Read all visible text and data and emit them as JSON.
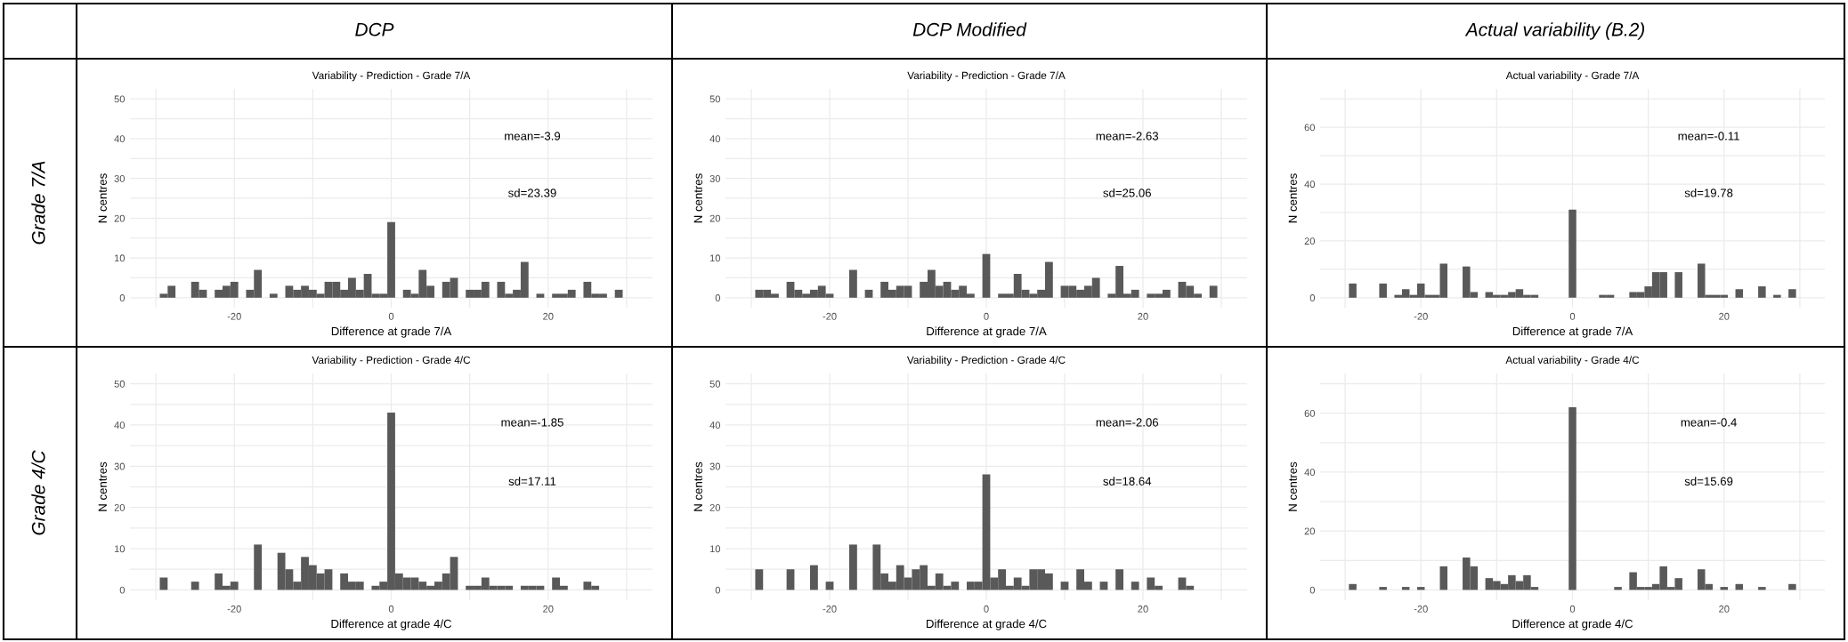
{
  "chart_data": [
    {
      "type": "histogram",
      "title": "DCP",
      "subtitle": "Variability - Prediction - Grade 7/A",
      "xlabel": "Difference at grade 7/A",
      "ylabel": "N centres",
      "color": "#595959",
      "grid": true,
      "bins": [
        -29.5,
        -28.5,
        -27.5,
        -26.5,
        -25.5,
        -24.5,
        -23.5,
        -22.5,
        -21.5,
        -20.5,
        -19.5,
        -18.5,
        -17.5,
        -16.5,
        -15.5,
        -14.5,
        -13.5,
        -12.5,
        -11.5,
        -10.5,
        -9.5,
        -8.5,
        -7.5,
        -6.5,
        -5.5,
        -4.5,
        -3.5,
        -2.5,
        -1.5,
        -0.5,
        0.5,
        1.5,
        2.5,
        3.5,
        4.5,
        5.5,
        6.5,
        7.5,
        8.5,
        9.5,
        10.5,
        11.5,
        12.5,
        13.5,
        14.5,
        15.5,
        16.5,
        17.5,
        18.5,
        19.5,
        20.5,
        21.5,
        22.5,
        23.5,
        24.5,
        25.5,
        26.5,
        27.5,
        28.5,
        29.5
      ],
      "values": [
        1,
        3,
        0,
        0,
        4,
        2,
        0,
        2,
        3,
        4,
        0,
        2,
        7,
        0,
        1,
        0,
        3,
        2,
        3,
        2,
        1,
        4,
        4,
        2,
        5,
        2,
        6,
        1,
        1,
        19,
        0,
        2,
        1,
        7,
        3,
        0,
        4,
        5,
        0,
        2,
        2,
        4,
        0,
        4,
        1,
        2,
        9,
        0,
        1,
        0,
        1,
        1,
        2,
        0,
        4,
        1,
        1,
        0,
        2
      ],
      "xlim": [
        -33.3,
        33.3
      ],
      "xticks": [
        {
          "value": -30,
          "label": null
        },
        -20,
        {
          "value": -10,
          "label": null
        },
        0,
        {
          "value": 10,
          "label": null
        },
        20,
        {
          "value": 30,
          "label": null
        }
      ],
      "ylim": [
        -2.5,
        52.5
      ],
      "yticks": [
        0,
        {
          "value": 5,
          "label": null
        },
        10,
        {
          "value": 15,
          "label": null
        },
        20,
        {
          "value": 25,
          "label": null
        },
        30,
        {
          "value": 35,
          "label": null
        },
        40,
        {
          "value": 45,
          "label": null
        },
        50
      ],
      "annotations": [
        "mean=-3.9",
        "sd=23.39",
        "Grade 7/A"
      ]
    },
    {
      "type": "histogram",
      "title": "DCP Modified",
      "subtitle": "Variability - Prediction - Grade 7/A",
      "xlabel": "Difference at grade 7/A",
      "ylabel": "N centres",
      "color": "#595959",
      "grid": true,
      "bins": [
        -29.5,
        -28.5,
        -27.5,
        -26.5,
        -25.5,
        -24.5,
        -23.5,
        -22.5,
        -21.5,
        -20.5,
        -19.5,
        -18.5,
        -17.5,
        -16.5,
        -15.5,
        -14.5,
        -13.5,
        -12.5,
        -11.5,
        -10.5,
        -9.5,
        -8.5,
        -7.5,
        -6.5,
        -5.5,
        -4.5,
        -3.5,
        -2.5,
        -1.5,
        -0.5,
        0.5,
        1.5,
        2.5,
        3.5,
        4.5,
        5.5,
        6.5,
        7.5,
        8.5,
        9.5,
        10.5,
        11.5,
        12.5,
        13.5,
        14.5,
        15.5,
        16.5,
        17.5,
        18.5,
        19.5,
        20.5,
        21.5,
        22.5,
        23.5,
        24.5,
        25.5,
        26.5,
        27.5,
        28.5,
        29.5
      ],
      "values": [
        2,
        2,
        1,
        0,
        4,
        2,
        1,
        2,
        3,
        1,
        0,
        0,
        7,
        0,
        2,
        0,
        4,
        2,
        3,
        3,
        0,
        4,
        7,
        3,
        4,
        2,
        3,
        1,
        0,
        11,
        0,
        1,
        1,
        6,
        2,
        1,
        2,
        9,
        0,
        3,
        3,
        2,
        3,
        5,
        0,
        1,
        8,
        1,
        2,
        0,
        1,
        1,
        2,
        0,
        4,
        3,
        1,
        0,
        3
      ],
      "xlim": [
        -33.3,
        33.3
      ],
      "xticks": [
        {
          "value": -30,
          "label": null
        },
        -20,
        {
          "value": -10,
          "label": null
        },
        0,
        {
          "value": 10,
          "label": null
        },
        20,
        {
          "value": 30,
          "label": null
        }
      ],
      "ylim": [
        -2.5,
        52.5
      ],
      "yticks": [
        0,
        {
          "value": 5,
          "label": null
        },
        10,
        {
          "value": 15,
          "label": null
        },
        20,
        {
          "value": 25,
          "label": null
        },
        30,
        {
          "value": 35,
          "label": null
        },
        40,
        {
          "value": 45,
          "label": null
        },
        50
      ],
      "annotations": [
        "mean=-2.63",
        "sd=25.06"
      ]
    },
    {
      "type": "histogram",
      "title": "Actual variability (B.2)",
      "subtitle": "Actual variability - Grade 7/A",
      "xlabel": "Difference at grade 7/A",
      "ylabel": "N centres",
      "color": "#595959",
      "grid": true,
      "bins": [
        -29.5,
        -28.5,
        -27.5,
        -26.5,
        -25.5,
        -24.5,
        -23.5,
        -22.5,
        -21.5,
        -20.5,
        -19.5,
        -18.5,
        -17.5,
        -16.5,
        -15.5,
        -14.5,
        -13.5,
        -12.5,
        -11.5,
        -10.5,
        -9.5,
        -8.5,
        -7.5,
        -6.5,
        -5.5,
        -4.5,
        -3.5,
        -2.5,
        -1.5,
        -0.5,
        0.5,
        1.5,
        2.5,
        3.5,
        4.5,
        5.5,
        6.5,
        7.5,
        8.5,
        9.5,
        10.5,
        11.5,
        12.5,
        13.5,
        14.5,
        15.5,
        16.5,
        17.5,
        18.5,
        19.5,
        20.5,
        21.5,
        22.5,
        23.5,
        24.5,
        25.5,
        26.5,
        27.5,
        28.5,
        29.5
      ],
      "values": [
        5,
        0,
        0,
        0,
        5,
        0,
        1,
        3,
        1,
        5,
        1,
        1,
        12,
        0,
        0,
        11,
        2,
        0,
        2,
        1,
        1,
        2,
        3,
        1,
        1,
        0,
        0,
        0,
        0,
        31,
        0,
        0,
        0,
        1,
        1,
        0,
        0,
        2,
        2,
        4,
        9,
        9,
        0,
        9,
        0,
        0,
        12,
        1,
        1,
        1,
        0,
        3,
        0,
        0,
        4,
        0,
        1,
        0,
        3
      ],
      "xlim": [
        -33.3,
        33.3
      ],
      "xticks": [
        {
          "value": -30,
          "label": null
        },
        -20,
        {
          "value": -10,
          "label": null
        },
        0,
        {
          "value": 10,
          "label": null
        },
        20,
        {
          "value": 30,
          "label": null
        }
      ],
      "ylim": [
        -3.5,
        73.5
      ],
      "yticks": [
        0,
        {
          "value": 10,
          "label": null
        },
        20,
        {
          "value": 30,
          "label": null
        },
        40,
        {
          "value": 50,
          "label": null
        },
        60,
        {
          "value": 70,
          "label": null
        }
      ],
      "annotations": [
        "mean=-0.11",
        "sd=19.78"
      ]
    },
    {
      "type": "histogram",
      "subtitle": "Variability - Prediction - Grade 4/C",
      "xlabel": "Difference at grade 4/C",
      "ylabel": "N centres",
      "color": "#595959",
      "grid": true,
      "bins": [
        -29.5,
        -28.5,
        -27.5,
        -26.5,
        -25.5,
        -24.5,
        -23.5,
        -22.5,
        -21.5,
        -20.5,
        -19.5,
        -18.5,
        -17.5,
        -16.5,
        -15.5,
        -14.5,
        -13.5,
        -12.5,
        -11.5,
        -10.5,
        -9.5,
        -8.5,
        -7.5,
        -6.5,
        -5.5,
        -4.5,
        -3.5,
        -2.5,
        -1.5,
        -0.5,
        0.5,
        1.5,
        2.5,
        3.5,
        4.5,
        5.5,
        6.5,
        7.5,
        8.5,
        9.5,
        10.5,
        11.5,
        12.5,
        13.5,
        14.5,
        15.5,
        16.5,
        17.5,
        18.5,
        19.5,
        20.5,
        21.5,
        22.5,
        23.5,
        24.5,
        25.5,
        26.5,
        27.5,
        28.5,
        29.5
      ],
      "values": [
        3,
        0,
        0,
        0,
        2,
        0,
        0,
        4,
        1,
        2,
        0,
        0,
        11,
        0,
        0,
        9,
        5,
        2,
        8,
        6,
        4,
        5,
        0,
        4,
        2,
        2,
        0,
        1,
        2,
        43,
        4,
        3,
        3,
        2,
        1,
        2,
        4,
        8,
        0,
        1,
        1,
        3,
        1,
        1,
        1,
        0,
        1,
        1,
        1,
        0,
        3,
        1,
        0,
        0,
        2,
        1,
        0,
        0,
        0
      ],
      "xlim": [
        -33.3,
        33.3
      ],
      "xticks": [
        {
          "value": -30,
          "label": null
        },
        -20,
        {
          "value": -10,
          "label": null
        },
        0,
        {
          "value": 10,
          "label": null
        },
        20,
        {
          "value": 30,
          "label": null
        }
      ],
      "ylim": [
        -2.5,
        52.5
      ],
      "yticks": [
        0,
        {
          "value": 5,
          "label": null
        },
        10,
        {
          "value": 15,
          "label": null
        },
        20,
        {
          "value": 25,
          "label": null
        },
        30,
        {
          "value": 35,
          "label": null
        },
        40,
        {
          "value": 45,
          "label": null
        },
        50
      ],
      "annotations": [
        "mean=-1.85",
        "sd=17.11",
        "Grade 4/C"
      ]
    },
    {
      "type": "histogram",
      "subtitle": "Variability - Prediction - Grade 4/C",
      "xlabel": "Difference at grade 4/C",
      "ylabel": "N centres",
      "color": "#595959",
      "grid": true,
      "bins": [
        -29.5,
        -28.5,
        -27.5,
        -26.5,
        -25.5,
        -24.5,
        -23.5,
        -22.5,
        -21.5,
        -20.5,
        -19.5,
        -18.5,
        -17.5,
        -16.5,
        -15.5,
        -14.5,
        -13.5,
        -12.5,
        -11.5,
        -10.5,
        -9.5,
        -8.5,
        -7.5,
        -6.5,
        -5.5,
        -4.5,
        -3.5,
        -2.5,
        -1.5,
        -0.5,
        0.5,
        1.5,
        2.5,
        3.5,
        4.5,
        5.5,
        6.5,
        7.5,
        8.5,
        9.5,
        10.5,
        11.5,
        12.5,
        13.5,
        14.5,
        15.5,
        16.5,
        17.5,
        18.5,
        19.5,
        20.5,
        21.5,
        22.5,
        23.5,
        24.5,
        25.5,
        26.5,
        27.5,
        28.5,
        29.5
      ],
      "values": [
        5,
        0,
        0,
        0,
        5,
        0,
        0,
        6,
        0,
        2,
        0,
        0,
        11,
        0,
        0,
        11,
        4,
        2,
        6,
        3,
        5,
        6,
        1,
        4,
        1,
        2,
        0,
        2,
        2,
        28,
        3,
        5,
        1,
        3,
        1,
        5,
        5,
        4,
        0,
        2,
        0,
        5,
        2,
        0,
        2,
        0,
        5,
        0,
        2,
        0,
        3,
        1,
        0,
        0,
        3,
        1,
        0,
        0,
        0
      ],
      "xlim": [
        -33.3,
        33.3
      ],
      "xticks": [
        {
          "value": -30,
          "label": null
        },
        -20,
        {
          "value": -10,
          "label": null
        },
        0,
        {
          "value": 10,
          "label": null
        },
        20,
        {
          "value": 30,
          "label": null
        }
      ],
      "ylim": [
        -2.5,
        52.5
      ],
      "yticks": [
        0,
        {
          "value": 5,
          "label": null
        },
        10,
        {
          "value": 15,
          "label": null
        },
        20,
        {
          "value": 25,
          "label": null
        },
        30,
        {
          "value": 35,
          "label": null
        },
        40,
        {
          "value": 45,
          "label": null
        },
        50
      ],
      "annotations": [
        "mean=-2.06",
        "sd=18.64"
      ]
    },
    {
      "type": "histogram",
      "subtitle": "Actual variability - Grade 4/C",
      "xlabel": "Difference at grade 4/C",
      "ylabel": "N centres",
      "color": "#595959",
      "grid": true,
      "bins": [
        -29.5,
        -28.5,
        -27.5,
        -26.5,
        -25.5,
        -24.5,
        -23.5,
        -22.5,
        -21.5,
        -20.5,
        -19.5,
        -18.5,
        -17.5,
        -16.5,
        -15.5,
        -14.5,
        -13.5,
        -12.5,
        -11.5,
        -10.5,
        -9.5,
        -8.5,
        -7.5,
        -6.5,
        -5.5,
        -4.5,
        -3.5,
        -2.5,
        -1.5,
        -0.5,
        0.5,
        1.5,
        2.5,
        3.5,
        4.5,
        5.5,
        6.5,
        7.5,
        8.5,
        9.5,
        10.5,
        11.5,
        12.5,
        13.5,
        14.5,
        15.5,
        16.5,
        17.5,
        18.5,
        19.5,
        20.5,
        21.5,
        22.5,
        23.5,
        24.5,
        25.5,
        26.5,
        27.5,
        28.5,
        29.5
      ],
      "values": [
        2,
        0,
        0,
        0,
        1,
        0,
        0,
        1,
        0,
        1,
        0,
        0,
        8,
        0,
        0,
        11,
        8,
        0,
        4,
        3,
        2,
        5,
        3,
        5,
        1,
        0,
        0,
        0,
        0,
        62,
        0,
        0,
        0,
        0,
        0,
        1,
        0,
        6,
        1,
        1,
        2,
        8,
        1,
        4,
        0,
        0,
        7,
        2,
        0,
        1,
        0,
        2,
        0,
        0,
        1,
        0,
        0,
        0,
        2
      ],
      "xlim": [
        -33.3,
        33.3
      ],
      "xticks": [
        {
          "value": -30,
          "label": null
        },
        -20,
        {
          "value": -10,
          "label": null
        },
        0,
        {
          "value": 10,
          "label": null
        },
        20,
        {
          "value": 30,
          "label": null
        }
      ],
      "ylim": [
        -3.5,
        73.5
      ],
      "yticks": [
        0,
        {
          "value": 10,
          "label": null
        },
        20,
        {
          "value": 30,
          "label": null
        },
        40,
        {
          "value": 50,
          "label": null
        },
        60,
        {
          "value": 70,
          "label": null
        }
      ],
      "annotations": [
        "mean=-0.4",
        "sd=15.69"
      ]
    }
  ]
}
